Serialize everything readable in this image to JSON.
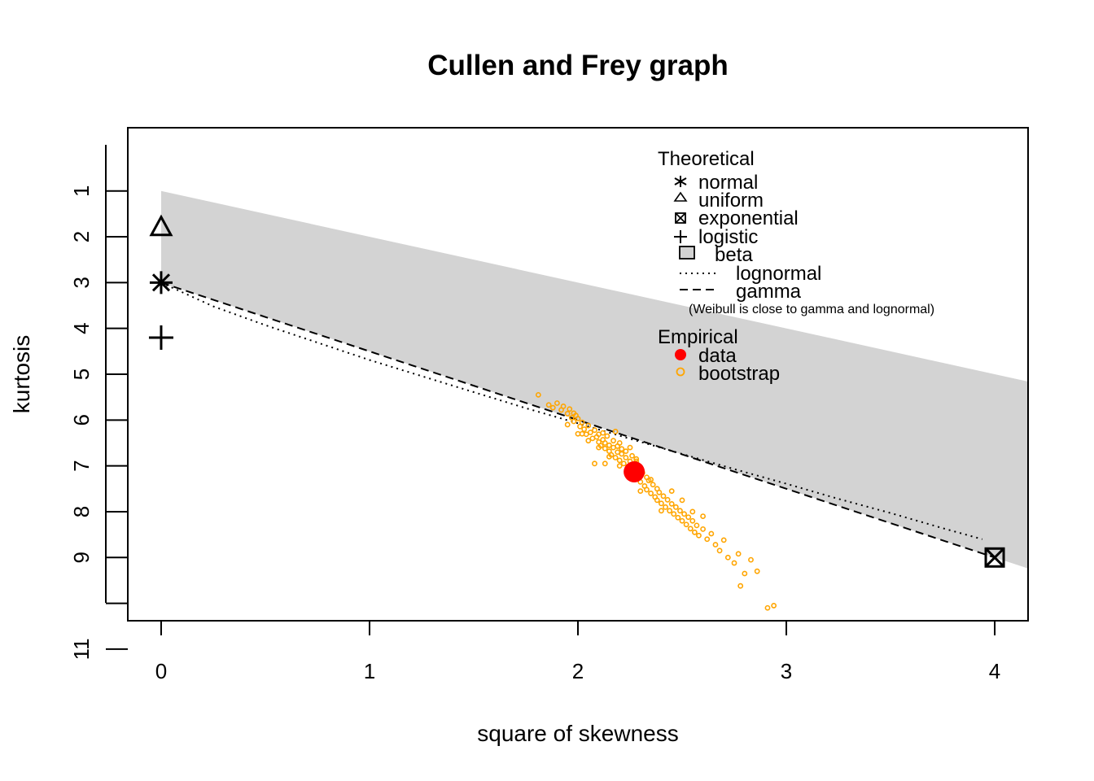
{
  "chart_data": {
    "type": "scatter",
    "title": "Cullen and Frey graph",
    "xlabel": "square of skewness",
    "ylabel": "kurtosis",
    "xlim": [
      -0.16,
      4.16
    ],
    "ylim": [
      10.38,
      -0.38
    ],
    "x_ticks": [
      "0",
      "1",
      "2",
      "3",
      "4"
    ],
    "y_ticks": [
      "1",
      "2",
      "3",
      "4",
      "5",
      "6",
      "7",
      "8",
      "9",
      "",
      "11"
    ],
    "beta_region": {
      "upper": [
        [
          0,
          1
        ],
        [
          4.16,
          5.16
        ]
      ],
      "lower": [
        [
          0,
          3
        ],
        [
          4.16,
          9.24
        ]
      ],
      "fill": "#d3d3d3"
    },
    "lognormal_line": [
      [
        0,
        3.0
      ],
      [
        0.25,
        3.52
      ],
      [
        0.5,
        3.93
      ],
      [
        0.75,
        4.31
      ],
      [
        1.0,
        4.69
      ],
      [
        1.25,
        5.04
      ],
      [
        1.5,
        5.39
      ],
      [
        1.75,
        5.74
      ],
      [
        2.0,
        6.07
      ],
      [
        2.25,
        6.41
      ],
      [
        2.5,
        6.74
      ],
      [
        2.75,
        7.07
      ],
      [
        3.0,
        7.39
      ],
      [
        3.25,
        7.72
      ],
      [
        3.5,
        8.03
      ],
      [
        3.75,
        8.36
      ],
      [
        3.94,
        8.6
      ]
    ],
    "gamma_line": [
      [
        0,
        3.0
      ],
      [
        4.0,
        9.0
      ]
    ],
    "theoretical_points": [
      {
        "name": "normal",
        "x": 0,
        "y": 3,
        "symbol": "asterisk"
      },
      {
        "name": "uniform",
        "x": 0,
        "y": 1.8,
        "symbol": "triangle"
      },
      {
        "name": "exponential",
        "x": 4,
        "y": 9,
        "symbol": "boxed-x"
      },
      {
        "name": "logistic",
        "x": 0,
        "y": 4.2,
        "symbol": "plus"
      }
    ],
    "observation": {
      "name": "data",
      "x": 2.27,
      "y": 7.13,
      "color": "#ff0000"
    },
    "bootstrap_color": "#ffa500",
    "bootstrap": [
      [
        1.81,
        5.45
      ],
      [
        1.86,
        5.67
      ],
      [
        1.88,
        5.73
      ],
      [
        1.9,
        5.63
      ],
      [
        1.92,
        5.78
      ],
      [
        1.93,
        5.7
      ],
      [
        1.95,
        5.86
      ],
      [
        1.96,
        5.76
      ],
      [
        1.97,
        5.95
      ],
      [
        1.98,
        6.03
      ],
      [
        1.99,
        5.9
      ],
      [
        2.0,
        5.97
      ],
      [
        2.01,
        6.14
      ],
      [
        2.02,
        6.05
      ],
      [
        2.03,
        6.2
      ],
      [
        2.04,
        6.31
      ],
      [
        2.05,
        6.12
      ],
      [
        2.06,
        6.27
      ],
      [
        2.07,
        6.4
      ],
      [
        2.08,
        6.22
      ],
      [
        2.09,
        6.37
      ],
      [
        2.1,
        6.48
      ],
      [
        2.1,
        6.31
      ],
      [
        2.11,
        6.56
      ],
      [
        2.12,
        6.43
      ],
      [
        2.13,
        6.62
      ],
      [
        2.13,
        6.5
      ],
      [
        2.14,
        6.35
      ],
      [
        2.15,
        6.68
      ],
      [
        2.15,
        6.55
      ],
      [
        2.16,
        6.76
      ],
      [
        2.17,
        6.6
      ],
      [
        2.17,
        6.45
      ],
      [
        2.18,
        6.82
      ],
      [
        2.19,
        6.7
      ],
      [
        2.19,
        6.57
      ],
      [
        2.2,
        6.88
      ],
      [
        2.21,
        6.74
      ],
      [
        2.21,
        6.63
      ],
      [
        2.22,
        6.95
      ],
      [
        2.23,
        6.82
      ],
      [
        2.23,
        6.68
      ],
      [
        2.24,
        7.02
      ],
      [
        2.25,
        6.9
      ],
      [
        2.26,
        7.1
      ],
      [
        2.26,
        6.78
      ],
      [
        2.27,
        6.97
      ],
      [
        2.28,
        7.18
      ],
      [
        2.28,
        6.85
      ],
      [
        2.29,
        7.26
      ],
      [
        2.3,
        7.05
      ],
      [
        2.3,
        7.35
      ],
      [
        2.31,
        7.15
      ],
      [
        2.32,
        7.44
      ],
      [
        2.33,
        7.25
      ],
      [
        2.33,
        7.52
      ],
      [
        2.34,
        7.32
      ],
      [
        2.35,
        7.6
      ],
      [
        2.36,
        7.41
      ],
      [
        2.37,
        7.68
      ],
      [
        2.38,
        7.5
      ],
      [
        2.38,
        7.75
      ],
      [
        2.39,
        7.58
      ],
      [
        2.4,
        7.82
      ],
      [
        2.41,
        7.66
      ],
      [
        2.42,
        7.9
      ],
      [
        2.43,
        7.74
      ],
      [
        2.44,
        7.98
      ],
      [
        2.45,
        7.83
      ],
      [
        2.46,
        8.05
      ],
      [
        2.47,
        7.9
      ],
      [
        2.48,
        8.13
      ],
      [
        2.49,
        7.98
      ],
      [
        2.5,
        8.2
      ],
      [
        2.51,
        8.05
      ],
      [
        2.52,
        8.28
      ],
      [
        2.53,
        8.12
      ],
      [
        2.54,
        8.37
      ],
      [
        2.55,
        8.2
      ],
      [
        2.56,
        8.45
      ],
      [
        2.57,
        8.3
      ],
      [
        2.58,
        8.52
      ],
      [
        2.6,
        8.38
      ],
      [
        2.62,
        8.6
      ],
      [
        2.64,
        8.48
      ],
      [
        2.66,
        8.72
      ],
      [
        2.68,
        8.85
      ],
      [
        2.7,
        8.62
      ],
      [
        2.72,
        9.0
      ],
      [
        2.75,
        9.12
      ],
      [
        2.77,
        8.92
      ],
      [
        2.8,
        9.35
      ],
      [
        2.83,
        9.05
      ],
      [
        2.86,
        9.3
      ],
      [
        2.78,
        9.62
      ],
      [
        2.91,
        10.1
      ],
      [
        2.94,
        10.05
      ],
      [
        2.0,
        6.3
      ],
      [
        2.05,
        6.45
      ],
      [
        2.1,
        6.6
      ],
      [
        2.15,
        6.8
      ],
      [
        2.2,
        7.0
      ],
      [
        2.25,
        7.2
      ],
      [
        2.35,
        7.3
      ],
      [
        2.45,
        7.55
      ],
      [
        1.95,
        6.1
      ],
      [
        2.08,
        6.95
      ],
      [
        2.13,
        6.95
      ],
      [
        2.3,
        7.55
      ],
      [
        2.4,
        7.98
      ],
      [
        2.5,
        7.75
      ],
      [
        2.55,
        8.0
      ],
      [
        2.6,
        8.1
      ],
      [
        2.2,
        6.5
      ],
      [
        2.25,
        6.6
      ],
      [
        1.98,
        5.85
      ],
      [
        2.02,
        6.3
      ],
      [
        2.12,
        6.28
      ],
      [
        2.18,
        6.25
      ],
      [
        2.28,
        6.9
      ]
    ],
    "legend": {
      "theoretical_title": "Theoretical",
      "normal": "normal",
      "uniform": "uniform",
      "exponential": "exponential",
      "logistic": "logistic",
      "beta": "beta",
      "lognormal": "lognormal",
      "gamma": "gamma",
      "note": "(Weibull is close to gamma and lognormal)",
      "empirical_title": "Empirical",
      "data": "data",
      "bootstrap": "bootstrap"
    }
  }
}
